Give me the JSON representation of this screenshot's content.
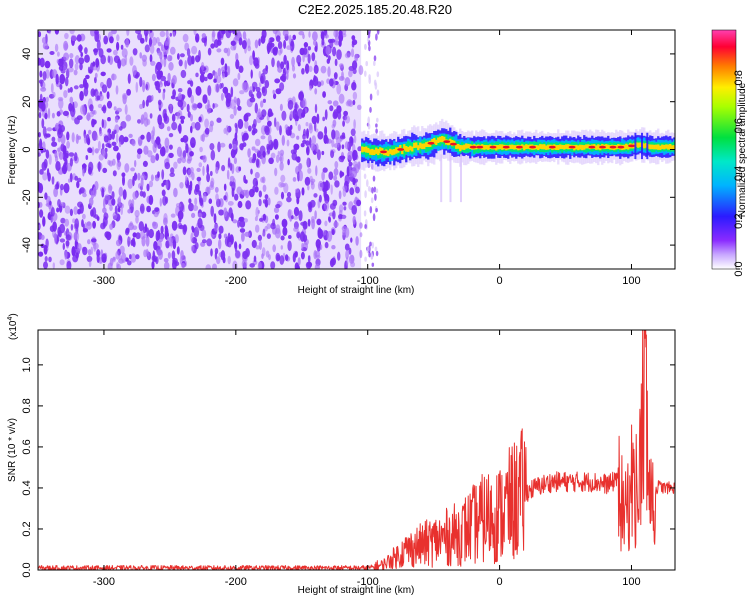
{
  "page": {
    "title": "C2E2.2025.185.20.48.R20"
  },
  "chart_data": [
    {
      "type": "heatmap",
      "title": "C2E2.2025.185.20.48.R20",
      "xlabel": "Height of straight line (km)",
      "ylabel": "Frequency (Hz)",
      "xlim": [
        -350,
        133
      ],
      "ylim": [
        -50,
        50
      ],
      "x_ticks": [
        -300,
        -200,
        -100,
        0,
        100
      ],
      "x_tick_labels": [
        "-300",
        "-200",
        "-100",
        "0",
        "100"
      ],
      "y_ticks": [
        -40,
        -20,
        0,
        20,
        40
      ],
      "y_tick_labels": [
        "-40",
        "-20",
        "0",
        "20",
        "40"
      ],
      "noise_region_km": [
        -350,
        -105
      ],
      "signal_region_km": [
        -105,
        133
      ],
      "signal_center_hz": [
        {
          "x": -105,
          "y": 0
        },
        {
          "x": -95,
          "y": -1
        },
        {
          "x": -85,
          "y": -1
        },
        {
          "x": -75,
          "y": 0
        },
        {
          "x": -65,
          "y": 1
        },
        {
          "x": -55,
          "y": 2
        },
        {
          "x": -45,
          "y": 4
        },
        {
          "x": -38,
          "y": 3
        },
        {
          "x": -30,
          "y": 1
        },
        {
          "x": -20,
          "y": 1
        },
        {
          "x": -10,
          "y": 1
        },
        {
          "x": 0,
          "y": 1
        },
        {
          "x": 20,
          "y": 1
        },
        {
          "x": 40,
          "y": 1
        },
        {
          "x": 60,
          "y": 1
        },
        {
          "x": 80,
          "y": 1
        },
        {
          "x": 95,
          "y": 1
        },
        {
          "x": 105,
          "y": 2
        },
        {
          "x": 115,
          "y": 1
        },
        {
          "x": 133,
          "y": 1
        }
      ],
      "colorbar": {
        "label": "Normalized spectral amplitude",
        "range": [
          0,
          1
        ],
        "ticks": [
          0.0,
          0.2,
          0.4,
          0.6,
          0.8
        ],
        "tick_labels": [
          "0.0",
          "0.2",
          "0.4",
          "0.6",
          "0.8"
        ]
      },
      "colors": {
        "noise": "#7a2cf0",
        "noise_light": "#d9c4fb",
        "signal_outer": "#2b1bff",
        "signal_mid": "#00e676",
        "signal_core": "#ffd400",
        "signal_peak": "#e8102a"
      }
    },
    {
      "type": "line",
      "xlabel": "Height of straight line (km)",
      "ylabel": "SNR (10 * v/v)",
      "scale_label": "(x10",
      "scale_exponent": "4",
      "scale_close": ")",
      "xlim": [
        -350,
        133
      ],
      "ylim": [
        0,
        1.17
      ],
      "x_ticks": [
        -300,
        -200,
        -100,
        0,
        100
      ],
      "x_tick_labels": [
        "-300",
        "-200",
        "-100",
        "0",
        "100"
      ],
      "y_ticks": [
        0.0,
        0.2,
        0.4,
        0.6,
        0.8,
        1.0
      ],
      "y_tick_labels": [
        "0.0",
        "0.2",
        "0.4",
        "0.6",
        "0.8",
        "1.0"
      ],
      "series": [
        {
          "color": "#e8312e",
          "x": [
            -350,
            -300,
            -250,
            -200,
            -150,
            -110,
            -100,
            -90,
            -80,
            -70,
            -60,
            -50,
            -40,
            -30,
            -20,
            -10,
            0,
            10,
            20,
            30,
            40,
            50,
            60,
            70,
            80,
            85,
            90,
            95,
            100,
            105,
            108,
            110,
            113,
            116,
            120,
            125,
            133
          ],
          "y": [
            0.01,
            0.01,
            0.01,
            0.01,
            0.01,
            0.01,
            0.01,
            0.02,
            0.06,
            0.1,
            0.12,
            0.14,
            0.16,
            0.18,
            0.22,
            0.26,
            0.27,
            0.33,
            0.38,
            0.41,
            0.43,
            0.43,
            0.43,
            0.43,
            0.42,
            0.42,
            0.47,
            0.3,
            0.5,
            0.45,
            0.75,
            1.15,
            0.5,
            0.35,
            0.41,
            0.4,
            0.4
          ]
        }
      ]
    }
  ]
}
